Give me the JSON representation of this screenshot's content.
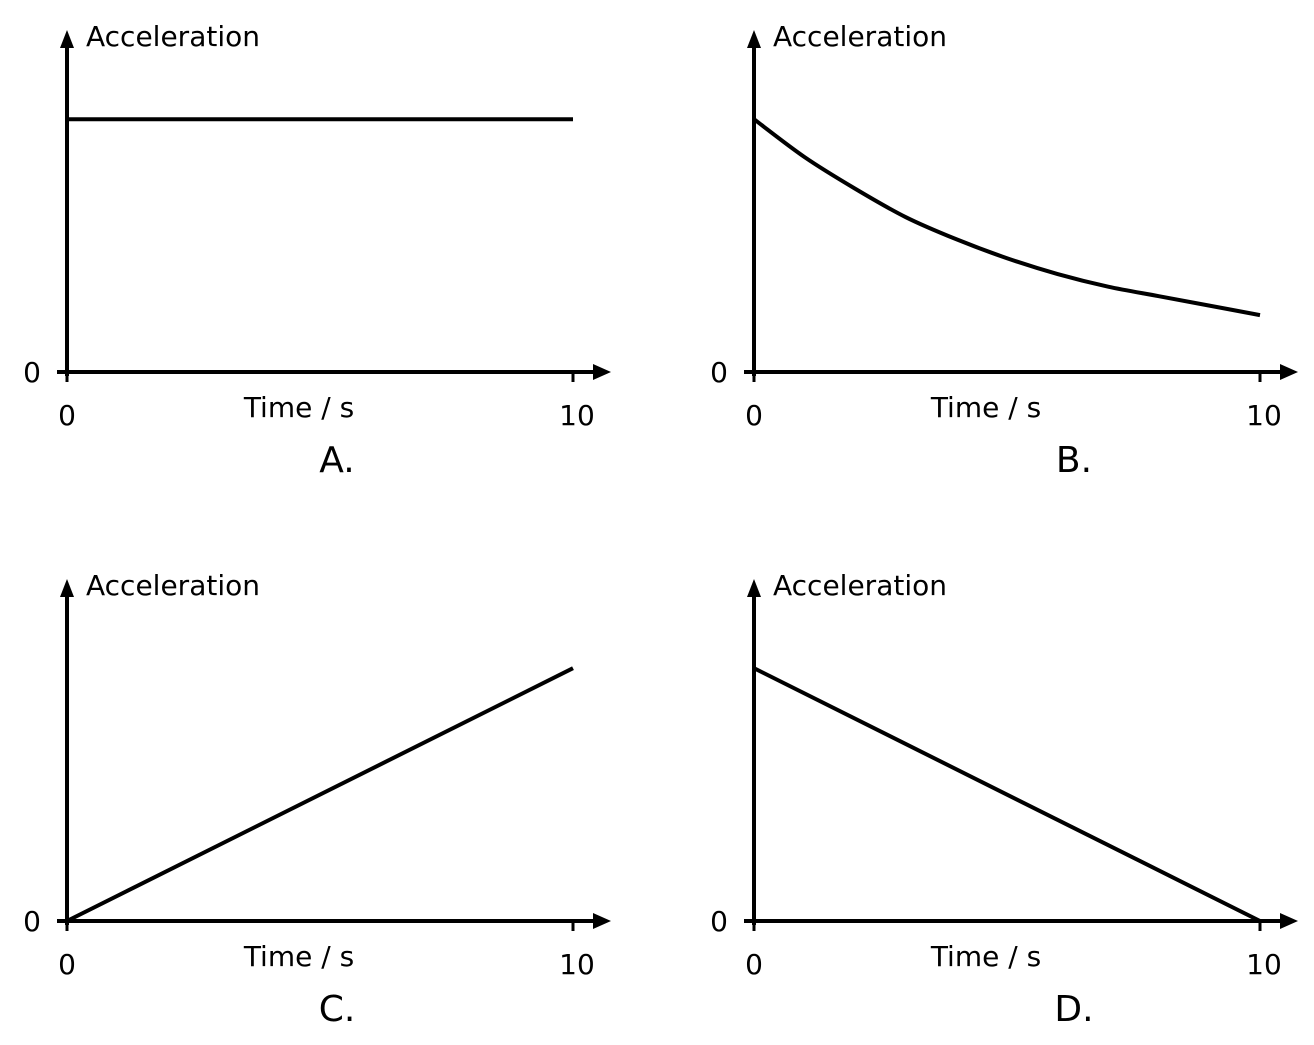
{
  "chart_data": [
    {
      "type": "line",
      "panel_label": "A.",
      "ylabel": "Acceleration",
      "xlabel": "Time / s",
      "x_ticks": [
        "0",
        "10"
      ],
      "y_ticks": [
        "0"
      ],
      "xlim": [
        0,
        10
      ],
      "ylim": [
        0,
        1
      ],
      "grid": false,
      "series": [
        {
          "x": [
            0,
            10
          ],
          "y": [
            0.8,
            0.8
          ]
        }
      ]
    },
    {
      "type": "line",
      "panel_label": "B.",
      "ylabel": "Acceleration",
      "xlabel": "Time / s",
      "x_ticks": [
        "0",
        "10"
      ],
      "y_ticks": [
        "0"
      ],
      "xlim": [
        0,
        10
      ],
      "ylim": [
        0,
        1
      ],
      "grid": false,
      "series": [
        {
          "x": [
            0,
            1,
            2,
            3,
            4,
            5,
            6,
            7,
            8,
            9,
            10
          ],
          "y": [
            0.8,
            0.68,
            0.58,
            0.49,
            0.42,
            0.36,
            0.31,
            0.27,
            0.24,
            0.21,
            0.18
          ]
        }
      ]
    },
    {
      "type": "line",
      "panel_label": "C.",
      "ylabel": "Acceleration",
      "xlabel": "Time / s",
      "x_ticks": [
        "0",
        "10"
      ],
      "y_ticks": [
        "0"
      ],
      "xlim": [
        0,
        10
      ],
      "ylim": [
        0,
        1
      ],
      "grid": false,
      "series": [
        {
          "x": [
            0,
            10
          ],
          "y": [
            0,
            0.8
          ]
        }
      ]
    },
    {
      "type": "line",
      "panel_label": "D.",
      "ylabel": "Acceleration",
      "xlabel": "Time / s",
      "x_ticks": [
        "0",
        "10"
      ],
      "y_ticks": [
        "0"
      ],
      "xlim": [
        0,
        10
      ],
      "ylim": [
        0,
        1
      ],
      "grid": false,
      "series": [
        {
          "x": [
            0,
            10
          ],
          "y": [
            0.8,
            0
          ]
        }
      ]
    }
  ],
  "colors": {
    "ink": "#000000",
    "background": "#ffffff"
  }
}
